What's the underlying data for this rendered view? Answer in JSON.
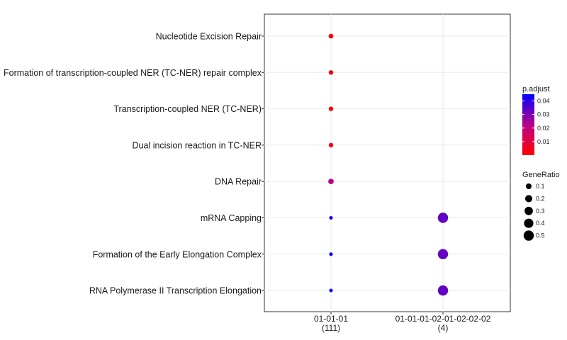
{
  "chart_data": {
    "type": "scatter",
    "categories_y": [
      "Nucleotide Excision Repair",
      "Formation of transcription-coupled NER (TC-NER) repair complex",
      "Transcription-coupled NER (TC-NER)",
      "Dual incision reaction in TC-NER",
      "DNA Repair",
      "mRNA Capping",
      "Formation of the Early Elongation Complex",
      "RNA Polymerase II Transcription Elongation"
    ],
    "clusters": [
      {
        "name": "01-01-01",
        "count_label": "(111)"
      },
      {
        "name": "01-01-01-02-01-02-02-02",
        "count_label": "(4)"
      }
    ],
    "points": [
      {
        "cluster": 0,
        "term": 0,
        "gene_ratio": 0.06,
        "p_adjust": 0.002
      },
      {
        "cluster": 0,
        "term": 1,
        "gene_ratio": 0.05,
        "p_adjust": 0.002
      },
      {
        "cluster": 0,
        "term": 2,
        "gene_ratio": 0.05,
        "p_adjust": 0.002
      },
      {
        "cluster": 0,
        "term": 3,
        "gene_ratio": 0.05,
        "p_adjust": 0.002
      },
      {
        "cluster": 0,
        "term": 4,
        "gene_ratio": 0.09,
        "p_adjust": 0.022
      },
      {
        "cluster": 0,
        "term": 5,
        "gene_ratio": 0.02,
        "p_adjust": 0.044
      },
      {
        "cluster": 0,
        "term": 6,
        "gene_ratio": 0.02,
        "p_adjust": 0.044
      },
      {
        "cluster": 0,
        "term": 7,
        "gene_ratio": 0.02,
        "p_adjust": 0.044
      },
      {
        "cluster": 1,
        "term": 5,
        "gene_ratio": 0.5,
        "p_adjust": 0.033
      },
      {
        "cluster": 1,
        "term": 6,
        "gene_ratio": 0.5,
        "p_adjust": 0.033
      },
      {
        "cluster": 1,
        "term": 7,
        "gene_ratio": 0.5,
        "p_adjust": 0.033
      }
    ],
    "color_legend": {
      "title": "p.adjust",
      "ticks": [
        "0.04",
        "0.03",
        "0.02",
        "0.01"
      ],
      "tick_values": [
        0.04,
        0.03,
        0.02,
        0.01
      ],
      "range": [
        0.0,
        0.045
      ],
      "low_color": "#ff0000",
      "high_color": "#0000ff"
    },
    "size_legend": {
      "title": "GeneRatio",
      "ticks": [
        "0.1",
        "0.2",
        "0.3",
        "0.4",
        "0.5"
      ],
      "tick_values": [
        0.1,
        0.2,
        0.3,
        0.4,
        0.5
      ]
    },
    "grid": true,
    "legend_placement": "right"
  }
}
